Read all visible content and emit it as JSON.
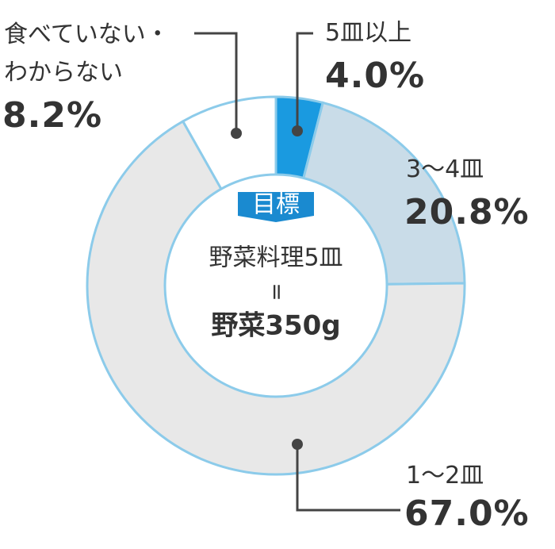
{
  "chart_data": {
    "type": "donut",
    "categories": [
      "5皿以上",
      "3〜4皿",
      "1〜2皿",
      "食べていない・わからない"
    ],
    "values": [
      4.0,
      20.8,
      67.0,
      8.2
    ],
    "value_labels": [
      "4.0%",
      "20.8%",
      "67.0%",
      "8.2%"
    ],
    "colors": [
      "#1a9ae0",
      "#c9dce8",
      "#e8e8e8",
      "#ffffff"
    ],
    "center": {
      "badge": "目標",
      "line1": "野菜料理5皿",
      "line2": "=",
      "line3": "野菜350g"
    }
  }
}
